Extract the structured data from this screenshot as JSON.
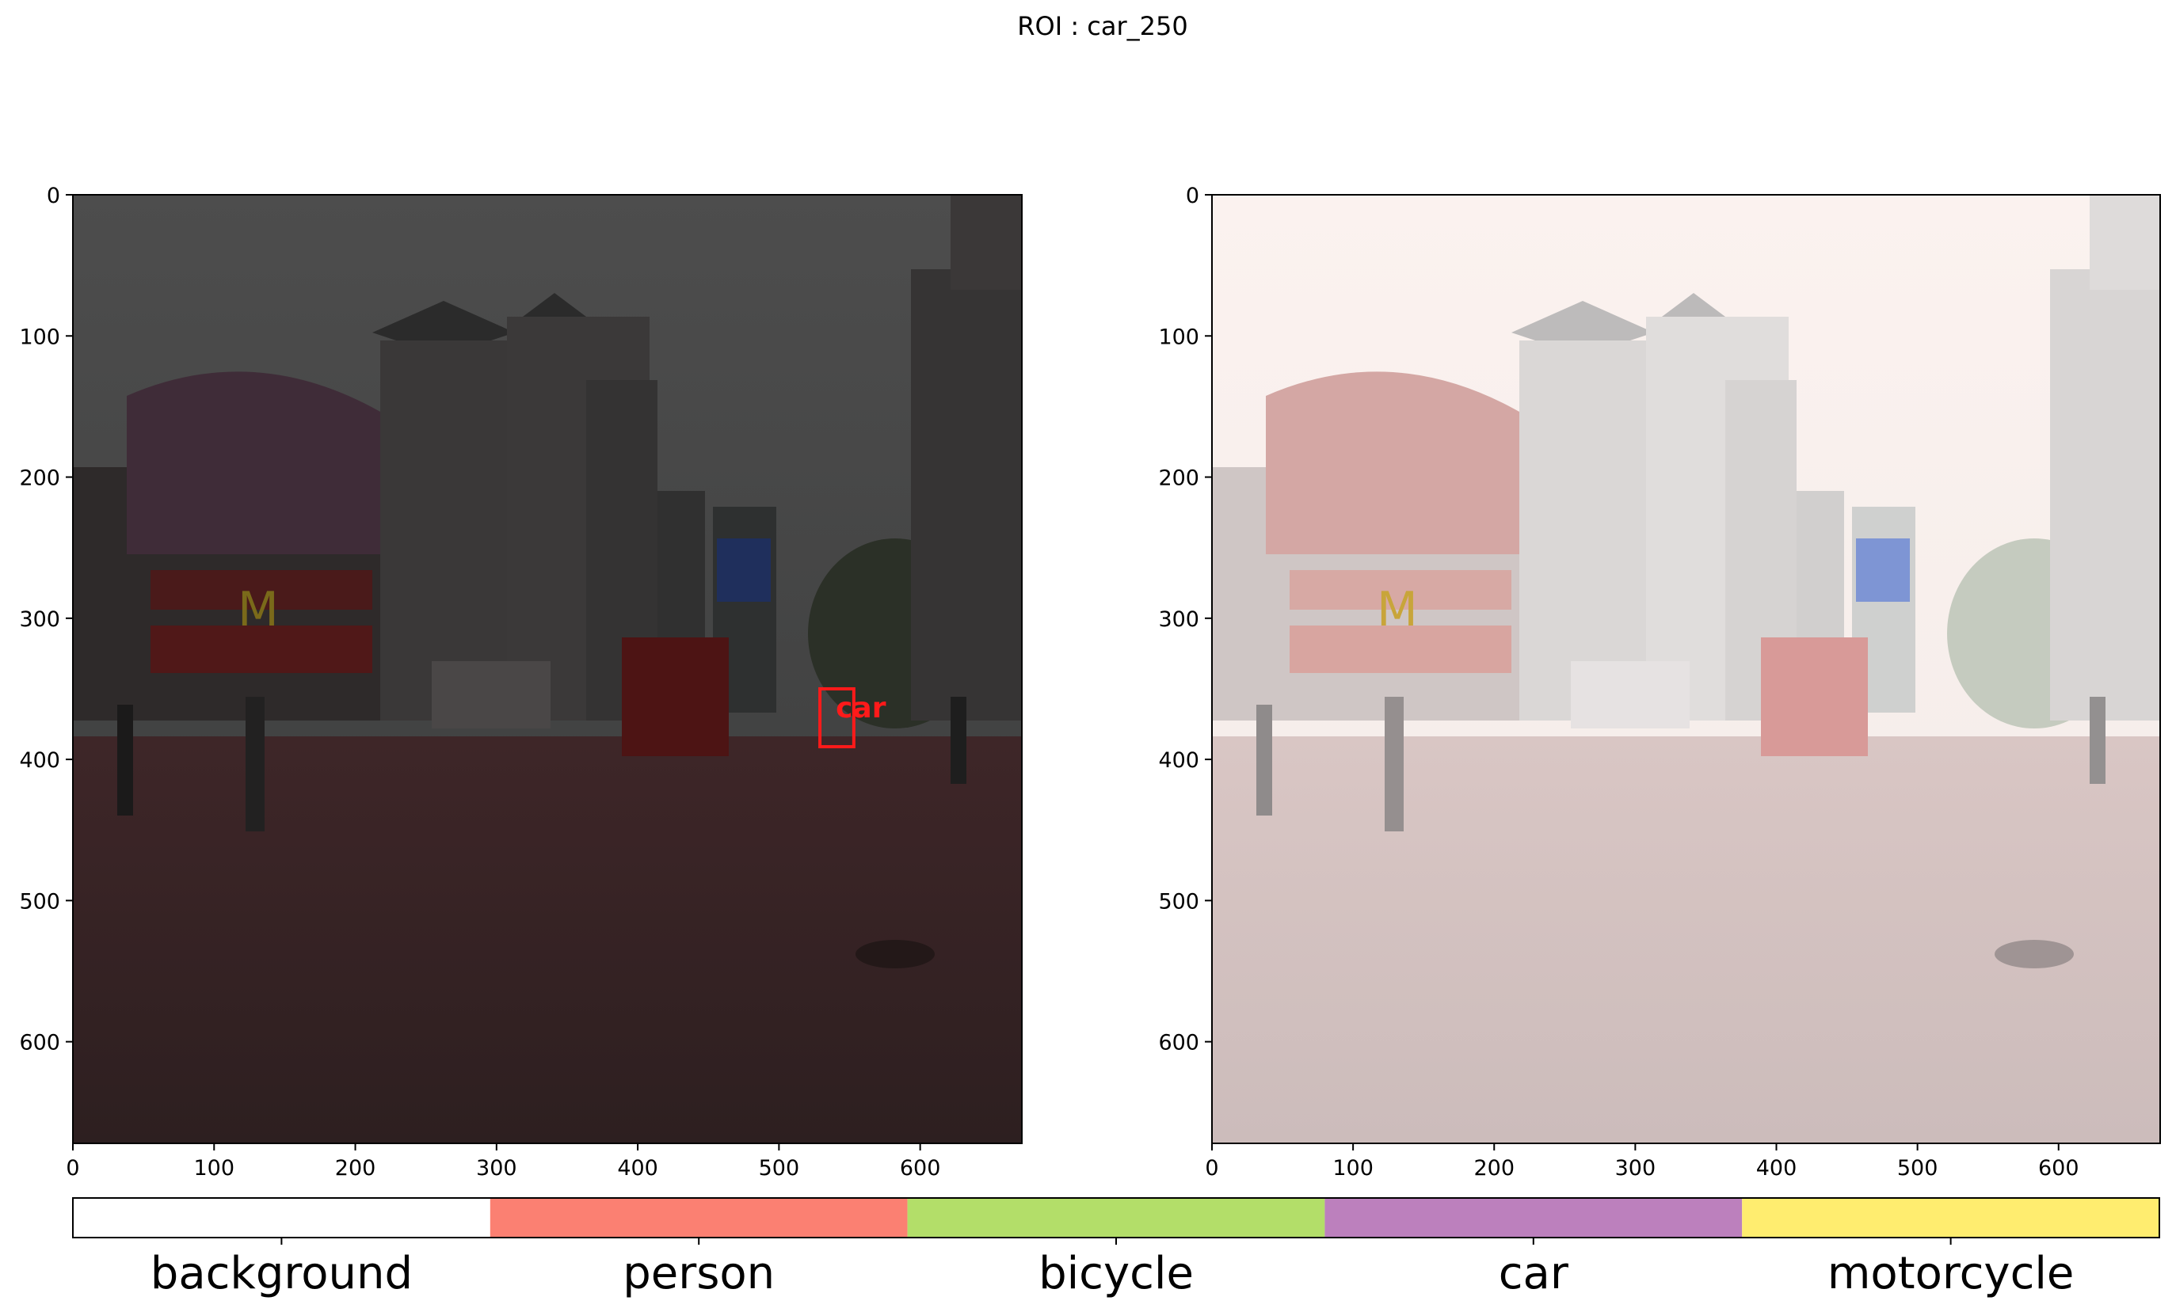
{
  "figure": {
    "title": "ROI : car_250"
  },
  "colors": {
    "box": "#ff1a1a",
    "frame": "#000000"
  },
  "chart_data": [
    {
      "type": "image",
      "panel": "left",
      "xlim": [
        0,
        672
      ],
      "ylim": [
        672,
        0
      ],
      "xticks": [
        0,
        100,
        200,
        300,
        400,
        500,
        600
      ],
      "yticks": [
        0,
        100,
        200,
        300,
        400,
        500,
        600
      ],
      "detections": [
        {
          "label": "car",
          "x0": 529,
          "y0": 350,
          "x1": 553,
          "y1": 391
        }
      ]
    },
    {
      "type": "image",
      "panel": "right",
      "xlim": [
        0,
        672
      ],
      "ylim": [
        672,
        0
      ],
      "xticks": [
        0,
        100,
        200,
        300,
        400,
        500,
        600
      ],
      "yticks": [
        0,
        100,
        200,
        300,
        400,
        500,
        600
      ]
    },
    {
      "type": "colorbar",
      "categories": [
        "background",
        "person",
        "bicycle",
        "car",
        "motorcycle"
      ],
      "colors": [
        "#ffffff",
        "#fb8072",
        "#b3de69",
        "#bc80bd",
        "#ffed6f"
      ]
    }
  ]
}
